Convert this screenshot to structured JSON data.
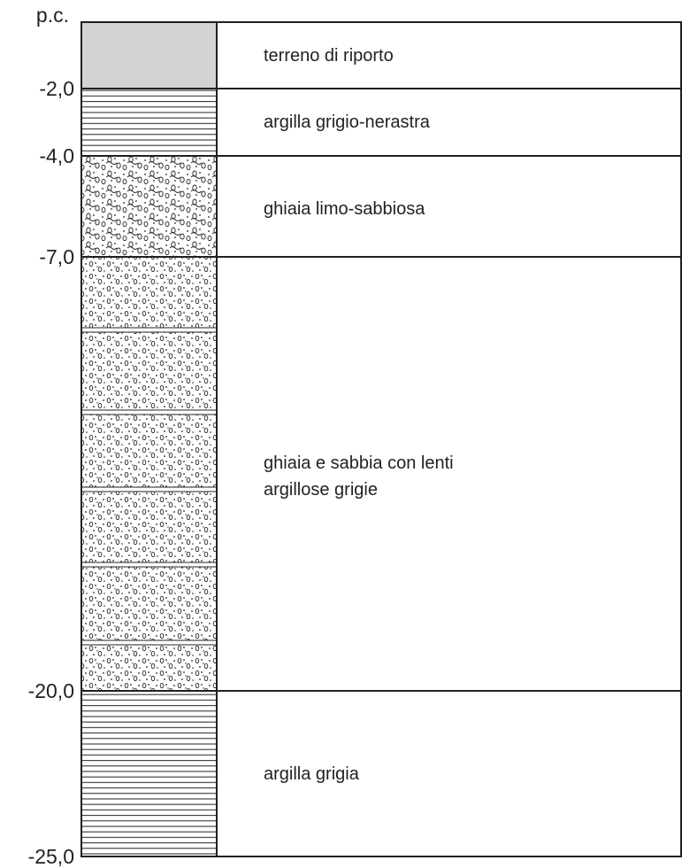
{
  "depths": [
    "p.c.",
    "-2,0",
    "-4,0",
    "-7,0",
    "-20,0",
    "-25,0"
  ],
  "layers": [
    {
      "lines": [
        "terreno di riporto"
      ]
    },
    {
      "lines": [
        "argilla grigio-nerastra"
      ]
    },
    {
      "lines": [
        "ghiaia limo-sabbiosa"
      ]
    },
    {
      "lines": [
        "ghiaia e sabbia con lenti",
        "argillose grigie"
      ]
    },
    {
      "lines": [
        "argilla grigia"
      ]
    }
  ]
}
